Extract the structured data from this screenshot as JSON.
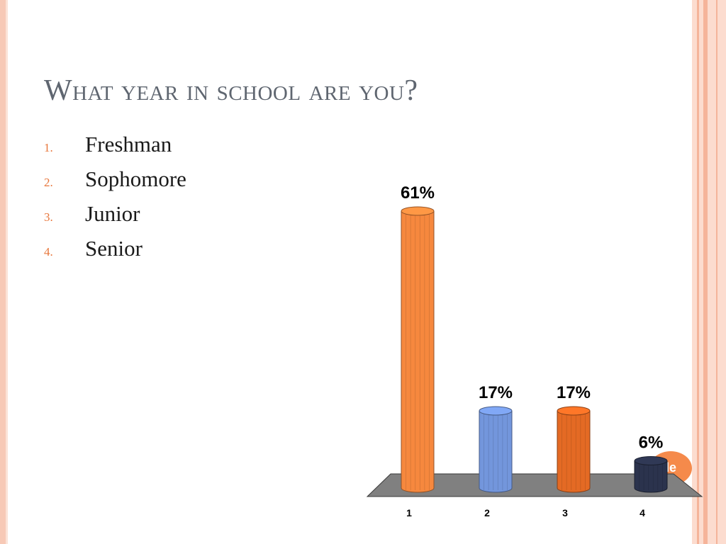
{
  "slide": {
    "title": "What year in school are you?",
    "answers": [
      {
        "number": "1.",
        "label": "Freshman"
      },
      {
        "number": "2.",
        "label": "Sophomore"
      },
      {
        "number": "3.",
        "label": "Junior"
      },
      {
        "number": "4.",
        "label": "Senior"
      }
    ],
    "badge": "ide",
    "colors": {
      "title": "#5f6670",
      "list_number": "#e8773c",
      "accent_stripe": "#f7c9b6",
      "badge": "#f58a4b",
      "floor": "#808080"
    }
  },
  "chart_data": {
    "type": "bar",
    "categories": [
      "1",
      "2",
      "3",
      "4"
    ],
    "values": [
      61,
      17,
      17,
      6
    ],
    "data_labels": [
      "61%",
      "17%",
      "17%",
      "6%"
    ],
    "ylim": [
      0,
      61
    ],
    "bar_colors": [
      "#f6883e",
      "#7396dc",
      "#e46a24",
      "#2b334d"
    ],
    "bar_style": "3d-cylinder",
    "grid": false,
    "legend": "none"
  }
}
